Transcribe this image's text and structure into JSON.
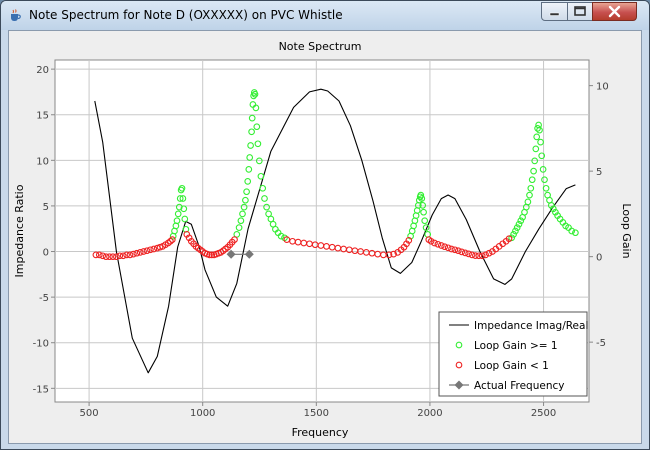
{
  "window": {
    "title": "Note Spectrum for Note D (OXXXXX) on PVC Whistle",
    "app_icon": "java-cup-icon",
    "controls": [
      "minimize-icon",
      "maximize-icon",
      "close-icon"
    ]
  },
  "chart_data": {
    "type": "line",
    "title": "Note Spectrum",
    "xlabel": "Frequency",
    "ylabel": "Impedance Ratio",
    "y2label": "Loop Gain",
    "xlim": [
      350,
      2700
    ],
    "ylim": [
      -16.5,
      21
    ],
    "y2lim": [
      -8.5,
      11.5
    ],
    "xticks": [
      500,
      1000,
      1500,
      2000,
      2500
    ],
    "yticks": [
      -15,
      -10,
      -5,
      0,
      5,
      10,
      15,
      20
    ],
    "y2ticks": [
      -5,
      0,
      5,
      10
    ],
    "grid": true,
    "legend_position": "bottom-right",
    "series": [
      {
        "name": "Impedance Imag/Real",
        "axis": "left",
        "style": "line",
        "color": "#000000",
        "x": [
          525,
          560,
          620,
          690,
          760,
          800,
          850,
          890,
          925,
          950,
          985,
          1010,
          1060,
          1110,
          1150,
          1200,
          1300,
          1400,
          1470,
          1520,
          1550,
          1600,
          1650,
          1700,
          1750,
          1790,
          1830,
          1870,
          1920,
          1960,
          2010,
          2050,
          2080,
          2110,
          2160,
          2220,
          2280,
          2330,
          2360,
          2420,
          2480,
          2540,
          2600,
          2640
        ],
        "y": [
          16.5,
          12.0,
          0.0,
          -9.5,
          -13.3,
          -11.5,
          -6.0,
          0.5,
          3.3,
          3.0,
          0.5,
          -2.0,
          -5.0,
          -6.0,
          -3.5,
          2.5,
          11.0,
          15.8,
          17.5,
          17.8,
          17.6,
          16.5,
          13.8,
          10.0,
          5.5,
          1.5,
          -1.8,
          -2.4,
          -1.2,
          1.0,
          4.0,
          5.8,
          6.2,
          5.8,
          3.5,
          0.0,
          -3.0,
          -3.6,
          -3.0,
          0.0,
          2.5,
          4.8,
          6.9,
          7.3
        ]
      },
      {
        "name": "Loop Gain >= 1",
        "axis": "right",
        "style": "circle",
        "color": "#33ee33",
        "groups": [
          {
            "x": [
              870,
              876,
              882,
              887,
              892,
              897,
              901,
              905,
              909,
              913,
              917,
              921,
              926
            ],
            "y": [
              1.2,
              1.5,
              1.8,
              2.1,
              2.5,
              2.9,
              3.4,
              3.9,
              4.0,
              3.4,
              2.8,
              2.2,
              1.6
            ]
          },
          {
            "x": [
              1150,
              1160,
              1168,
              1175,
              1182,
              1188,
              1193,
              1198,
              1203,
              1207,
              1211,
              1215,
              1218,
              1221,
              1224,
              1227,
              1230,
              1234,
              1238,
              1243,
              1249,
              1256,
              1264,
              1272,
              1281,
              1290,
              1300,
              1310,
              1320,
              1332,
              1345,
              1360
            ],
            "y": [
              1.3,
              1.7,
              2.1,
              2.5,
              2.9,
              3.3,
              3.8,
              4.4,
              5.1,
              5.8,
              6.5,
              7.3,
              8.1,
              8.9,
              9.4,
              9.6,
              9.5,
              8.7,
              7.6,
              6.6,
              5.6,
              4.7,
              4.0,
              3.4,
              2.9,
              2.5,
              2.2,
              1.9,
              1.6,
              1.4,
              1.2,
              1.1
            ]
          },
          {
            "x": [
              1915,
              1922,
              1928,
              1934,
              1939,
              1944,
              1949,
              1953,
              1957,
              1960,
              1964,
              1968,
              1972,
              1977,
              1983,
              1990
            ],
            "y": [
              1.2,
              1.5,
              1.8,
              2.1,
              2.4,
              2.7,
              3.0,
              3.3,
              3.5,
              3.6,
              3.4,
              3.0,
              2.6,
              2.1,
              1.7,
              1.3
            ]
          },
          {
            "x": [
              2360,
              2368,
              2376,
              2384,
              2392,
              2400,
              2408,
              2416,
              2424,
              2431,
              2438,
              2444,
              2450,
              2456,
              2461,
              2466,
              2470,
              2474,
              2478,
              2482,
              2487,
              2492,
              2498,
              2504,
              2511,
              2518,
              2526,
              2534,
              2543,
              2552,
              2562,
              2573,
              2585,
              2597,
              2610,
              2624,
              2640
            ],
            "y": [
              1.1,
              1.3,
              1.5,
              1.7,
              1.9,
              2.1,
              2.3,
              2.6,
              2.9,
              3.2,
              3.6,
              4.0,
              4.5,
              5.0,
              5.6,
              6.3,
              7.0,
              7.5,
              7.7,
              7.4,
              6.7,
              5.9,
              5.1,
              4.5,
              4.0,
              3.6,
              3.3,
              3.0,
              2.8,
              2.6,
              2.4,
              2.2,
              2.0,
              1.8,
              1.7,
              1.5,
              1.4
            ]
          }
        ]
      },
      {
        "name": "Loop Gain < 1",
        "axis": "right",
        "style": "circle",
        "color": "#ee2222",
        "groups": [
          {
            "x": [
              530,
              545,
              560,
              575,
              590,
              605,
              620,
              635,
              650,
              665,
              680,
              695,
              710,
              725,
              740,
              755,
              770,
              785,
              800,
              812,
              824,
              836,
              848,
              858,
              866
            ],
            "y": [
              0.1,
              0.1,
              0.05,
              0.0,
              0.0,
              0.0,
              0.0,
              0.05,
              0.05,
              0.1,
              0.1,
              0.15,
              0.2,
              0.25,
              0.3,
              0.35,
              0.4,
              0.45,
              0.5,
              0.55,
              0.6,
              0.7,
              0.8,
              0.9,
              1.0
            ]
          },
          {
            "x": [
              930,
              940,
              950,
              960,
              970,
              980,
              990,
              1000,
              1010,
              1020,
              1030,
              1040,
              1050,
              1060,
              1070,
              1080,
              1090,
              1100,
              1110,
              1120,
              1130,
              1140
            ],
            "y": [
              1.3,
              1.1,
              0.9,
              0.75,
              0.6,
              0.5,
              0.4,
              0.3,
              0.2,
              0.15,
              0.1,
              0.1,
              0.1,
              0.15,
              0.2,
              0.25,
              0.35,
              0.45,
              0.55,
              0.7,
              0.85,
              1.0
            ]
          },
          {
            "x": [
              1370,
              1395,
              1420,
              1445,
              1470,
              1495,
              1520,
              1545,
              1570,
              1595,
              1620,
              1645,
              1670,
              1695,
              1720,
              1745,
              1770,
              1795,
              1820,
              1840,
              1858,
              1873,
              1886,
              1897,
              1907
            ],
            "y": [
              1.0,
              0.9,
              0.85,
              0.8,
              0.75,
              0.7,
              0.65,
              0.6,
              0.55,
              0.5,
              0.45,
              0.4,
              0.35,
              0.3,
              0.25,
              0.2,
              0.15,
              0.1,
              0.1,
              0.15,
              0.25,
              0.4,
              0.55,
              0.75,
              0.95
            ]
          },
          {
            "x": [
              1995,
              2005,
              2020,
              2035,
              2050,
              2065,
              2080,
              2095,
              2110,
              2125,
              2140,
              2155,
              2170,
              2185,
              2200,
              2215,
              2230,
              2245,
              2260,
              2275,
              2290,
              2305,
              2320,
              2335,
              2348
            ],
            "y": [
              1.0,
              0.9,
              0.8,
              0.72,
              0.65,
              0.58,
              0.52,
              0.45,
              0.4,
              0.35,
              0.28,
              0.22,
              0.16,
              0.1,
              0.06,
              0.05,
              0.05,
              0.1,
              0.2,
              0.3,
              0.45,
              0.6,
              0.75,
              0.9,
              1.05
            ]
          }
        ]
      },
      {
        "name": "Actual Frequency",
        "axis": "left",
        "style": "diamond",
        "color": "#777777",
        "x": [
          1125,
          1205
        ],
        "y": [
          -0.3,
          -0.3
        ]
      }
    ]
  }
}
